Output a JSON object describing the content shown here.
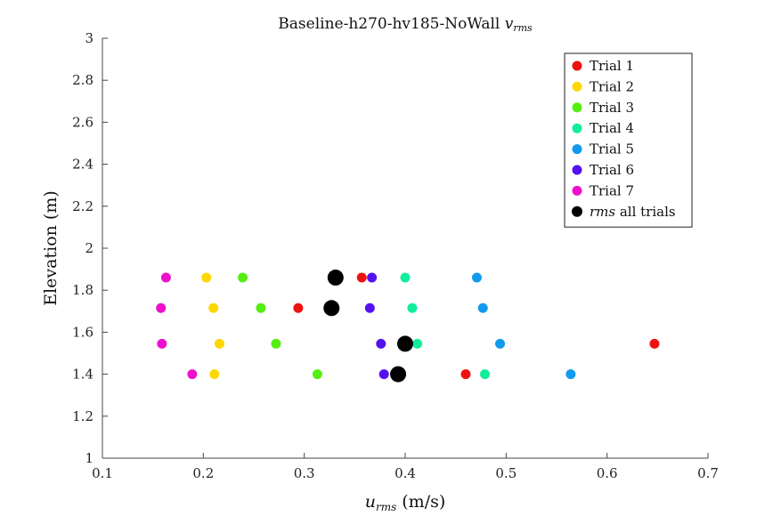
{
  "chart_data": {
    "type": "scatter",
    "title": "Baseline-h270-hv185-NoWall",
    "title_math": "v",
    "title_math_sub": "rms",
    "xlabel_math": "u",
    "xlabel_math_sub": "rms",
    "xlabel_unit": "(m/s)",
    "ylabel": "Elevation (m)",
    "xlim": [
      0.1,
      0.7
    ],
    "ylim": [
      1,
      3
    ],
    "xticks": [
      "0.1",
      "0.2",
      "0.3",
      "0.4",
      "0.5",
      "0.6",
      "0.7"
    ],
    "yticks": [
      "1",
      "1.2",
      "1.4",
      "1.6",
      "1.8",
      "2",
      "2.2",
      "2.4",
      "2.6",
      "2.8",
      "3"
    ],
    "grid": false,
    "legend_position": "top-right",
    "series": [
      {
        "name": "Trial 1",
        "color": "#ee1111",
        "points": [
          [
            0.357,
            1.86
          ],
          [
            0.294,
            1.715
          ],
          [
            0.647,
            1.545
          ],
          [
            0.46,
            1.4
          ]
        ]
      },
      {
        "name": "Trial 2",
        "color": "#ffd700",
        "points": [
          [
            0.203,
            1.86
          ],
          [
            0.21,
            1.715
          ],
          [
            0.216,
            1.545
          ],
          [
            0.211,
            1.4
          ]
        ]
      },
      {
        "name": "Trial 3",
        "color": "#55ee11",
        "points": [
          [
            0.239,
            1.86
          ],
          [
            0.257,
            1.715
          ],
          [
            0.272,
            1.545
          ],
          [
            0.313,
            1.4
          ]
        ]
      },
      {
        "name": "Trial 4",
        "color": "#11ee99",
        "points": [
          [
            0.4,
            1.86
          ],
          [
            0.407,
            1.715
          ],
          [
            0.412,
            1.545
          ],
          [
            0.479,
            1.4
          ]
        ]
      },
      {
        "name": "Trial 5",
        "color": "#1199ee",
        "points": [
          [
            0.471,
            1.86
          ],
          [
            0.477,
            1.715
          ],
          [
            0.494,
            1.545
          ],
          [
            0.564,
            1.4
          ]
        ]
      },
      {
        "name": "Trial 6",
        "color": "#5511ee",
        "points": [
          [
            0.367,
            1.86
          ],
          [
            0.365,
            1.715
          ],
          [
            0.376,
            1.545
          ],
          [
            0.379,
            1.4
          ]
        ]
      },
      {
        "name": "Trial 7",
        "color": "#ee11cc",
        "points": [
          [
            0.163,
            1.86
          ],
          [
            0.158,
            1.715
          ],
          [
            0.159,
            1.545
          ],
          [
            0.189,
            1.4
          ]
        ]
      },
      {
        "name": "rms",
        "name_suffix": "all trials",
        "color": "#000000",
        "large": true,
        "points": [
          [
            0.331,
            1.86
          ],
          [
            0.327,
            1.715
          ],
          [
            0.4,
            1.545
          ],
          [
            0.393,
            1.4
          ]
        ]
      }
    ]
  }
}
